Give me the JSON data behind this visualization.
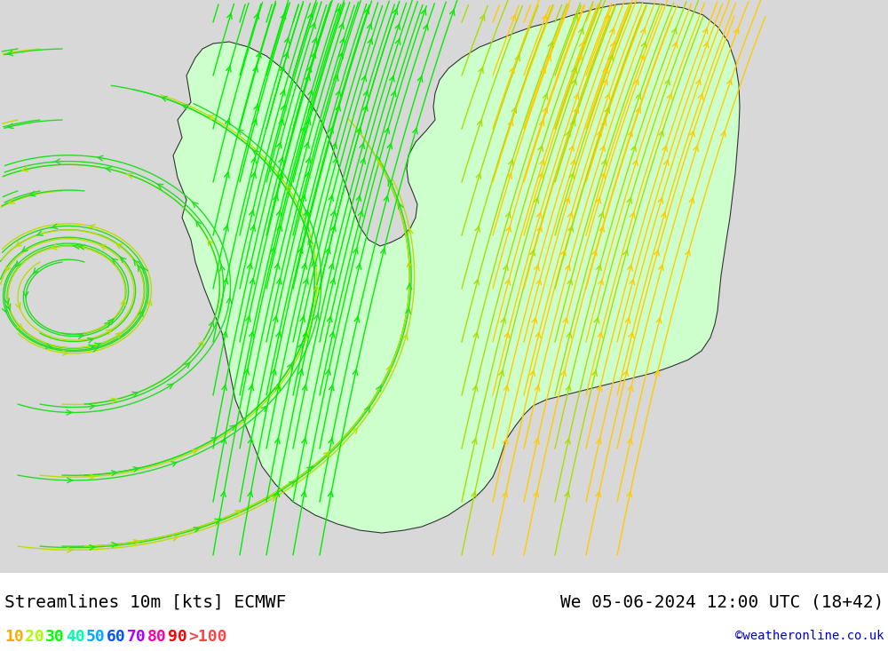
{
  "title_left": "Streamlines 10m [kts] ECMWF",
  "title_right": "We 05-06-2024 12:00 UTC (18+42)",
  "credit": "©weatheronline.co.uk",
  "legend_values": [
    "10",
    "20",
    "30",
    "40",
    "50",
    "60",
    "70",
    "80",
    "90",
    ">100"
  ],
  "legend_colors": [
    "#ffaa00",
    "#aaff00",
    "#00ff00",
    "#00ffaa",
    "#00aaff",
    "#0055ff",
    "#aa00ff",
    "#ff00aa",
    "#ff0000",
    "#ff4444"
  ],
  "bg_color": "#d8d8d8",
  "land_color": "#ccffcc",
  "sea_color": "#d8d8d8",
  "title_fontsize": 14,
  "legend_fontsize": 13,
  "credit_fontsize": 10,
  "fig_width": 10.0,
  "fig_height": 7.33
}
